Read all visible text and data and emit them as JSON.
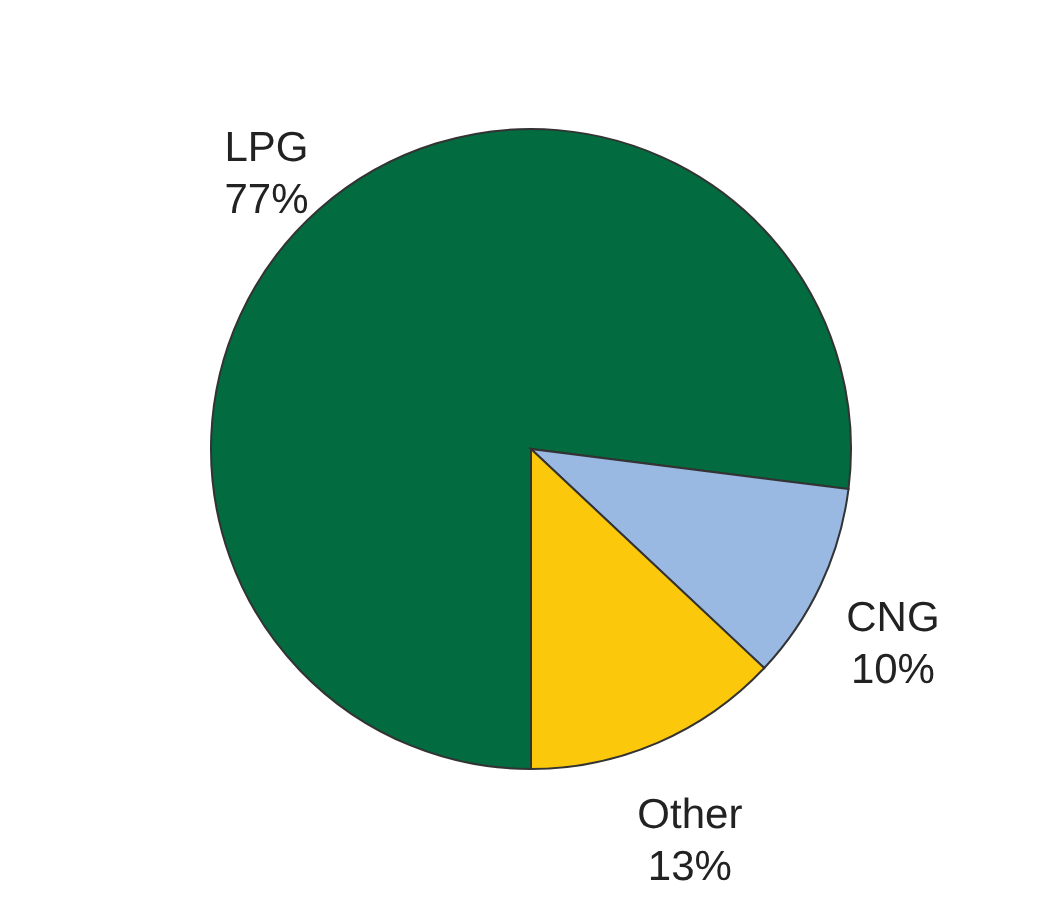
{
  "chart_data": {
    "type": "pie",
    "categories": [
      "LPG",
      "CNG",
      "Other"
    ],
    "values": [
      77,
      10,
      13
    ],
    "value_labels": [
      "77%",
      "10%",
      "13%"
    ],
    "colors": [
      "#026b40",
      "#99b9e3",
      "#fcc80b"
    ],
    "legend": false
  }
}
